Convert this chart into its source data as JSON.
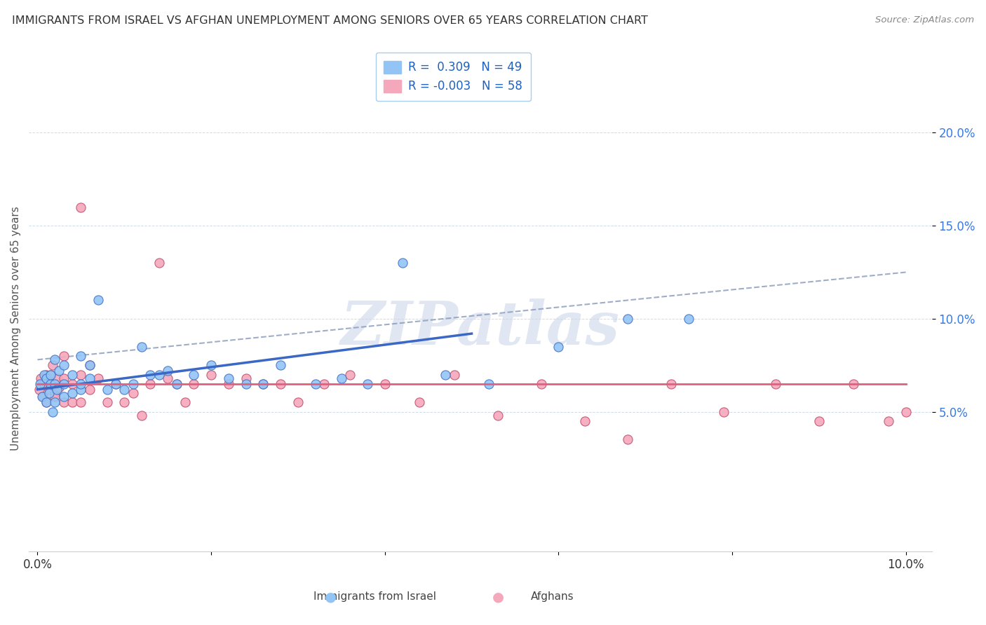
{
  "title": "IMMIGRANTS FROM ISRAEL VS AFGHAN UNEMPLOYMENT AMONG SENIORS OVER 65 YEARS CORRELATION CHART",
  "source": "Source: ZipAtlas.com",
  "ylabel": "Unemployment Among Seniors over 65 years",
  "xlim": [
    -0.001,
    0.103
  ],
  "ylim": [
    -0.025,
    0.215
  ],
  "yticks": [
    0.05,
    0.1,
    0.15,
    0.2
  ],
  "ytick_labels": [
    "5.0%",
    "10.0%",
    "15.0%",
    "20.0%"
  ],
  "xticks": [
    0.0,
    0.02,
    0.04,
    0.06,
    0.08,
    0.1
  ],
  "xtick_labels": [
    "0.0%",
    "",
    "",
    "",
    "",
    "10.0%"
  ],
  "legend_r1": "R =  0.309",
  "legend_n1": "N = 49",
  "legend_r2": "R = -0.003",
  "legend_n2": "N = 58",
  "color_israel": "#92C5F5",
  "color_afghan": "#F5A8BC",
  "color_israel_line": "#3A68C4",
  "color_afghan_line": "#E06080",
  "color_israel_edge": "#4472C4",
  "color_afghan_edge": "#C05070",
  "watermark": "ZIPatlas",
  "israel_x": [
    0.0003,
    0.0005,
    0.0008,
    0.001,
    0.001,
    0.0013,
    0.0015,
    0.0015,
    0.0017,
    0.002,
    0.002,
    0.002,
    0.0022,
    0.0025,
    0.003,
    0.003,
    0.003,
    0.004,
    0.004,
    0.005,
    0.005,
    0.005,
    0.006,
    0.006,
    0.007,
    0.008,
    0.009,
    0.01,
    0.011,
    0.012,
    0.013,
    0.014,
    0.015,
    0.016,
    0.018,
    0.02,
    0.022,
    0.024,
    0.026,
    0.028,
    0.032,
    0.035,
    0.038,
    0.042,
    0.047,
    0.052,
    0.06,
    0.068,
    0.075
  ],
  "israel_y": [
    0.065,
    0.058,
    0.07,
    0.055,
    0.068,
    0.06,
    0.065,
    0.07,
    0.05,
    0.055,
    0.065,
    0.078,
    0.062,
    0.072,
    0.058,
    0.065,
    0.075,
    0.06,
    0.07,
    0.062,
    0.065,
    0.08,
    0.068,
    0.075,
    0.11,
    0.062,
    0.065,
    0.062,
    0.065,
    0.085,
    0.07,
    0.07,
    0.072,
    0.065,
    0.07,
    0.075,
    0.068,
    0.065,
    0.065,
    0.075,
    0.065,
    0.068,
    0.065,
    0.13,
    0.07,
    0.065,
    0.085,
    0.1,
    0.1
  ],
  "afghan_x": [
    0.0002,
    0.0004,
    0.0006,
    0.0008,
    0.001,
    0.001,
    0.0013,
    0.0015,
    0.0017,
    0.002,
    0.002,
    0.002,
    0.0023,
    0.0025,
    0.003,
    0.003,
    0.003,
    0.004,
    0.004,
    0.005,
    0.005,
    0.005,
    0.006,
    0.006,
    0.007,
    0.008,
    0.009,
    0.01,
    0.011,
    0.012,
    0.013,
    0.014,
    0.015,
    0.016,
    0.017,
    0.018,
    0.02,
    0.022,
    0.024,
    0.026,
    0.028,
    0.03,
    0.033,
    0.036,
    0.04,
    0.044,
    0.048,
    0.053,
    0.058,
    0.063,
    0.068,
    0.073,
    0.079,
    0.085,
    0.09,
    0.094,
    0.098,
    0.1
  ],
  "afghan_y": [
    0.062,
    0.068,
    0.058,
    0.065,
    0.055,
    0.07,
    0.062,
    0.07,
    0.075,
    0.065,
    0.06,
    0.058,
    0.068,
    0.063,
    0.055,
    0.068,
    0.08,
    0.055,
    0.065,
    0.055,
    0.07,
    0.16,
    0.062,
    0.075,
    0.068,
    0.055,
    0.065,
    0.055,
    0.06,
    0.048,
    0.065,
    0.13,
    0.068,
    0.065,
    0.055,
    0.065,
    0.07,
    0.065,
    0.068,
    0.065,
    0.065,
    0.055,
    0.065,
    0.07,
    0.065,
    0.055,
    0.07,
    0.048,
    0.065,
    0.045,
    0.035,
    0.065,
    0.05,
    0.065,
    0.045,
    0.065,
    0.045,
    0.05
  ],
  "israel_line_x0": 0.0,
  "israel_line_y0": 0.062,
  "israel_line_x1": 0.05,
  "israel_line_y1": 0.092,
  "afghan_line_x0": 0.0,
  "afghan_line_y0": 0.065,
  "afghan_line_x1": 0.1,
  "afghan_line_y1": 0.065,
  "dash_line_x0": 0.0,
  "dash_line_y0": 0.078,
  "dash_line_x1": 0.1,
  "dash_line_y1": 0.125
}
